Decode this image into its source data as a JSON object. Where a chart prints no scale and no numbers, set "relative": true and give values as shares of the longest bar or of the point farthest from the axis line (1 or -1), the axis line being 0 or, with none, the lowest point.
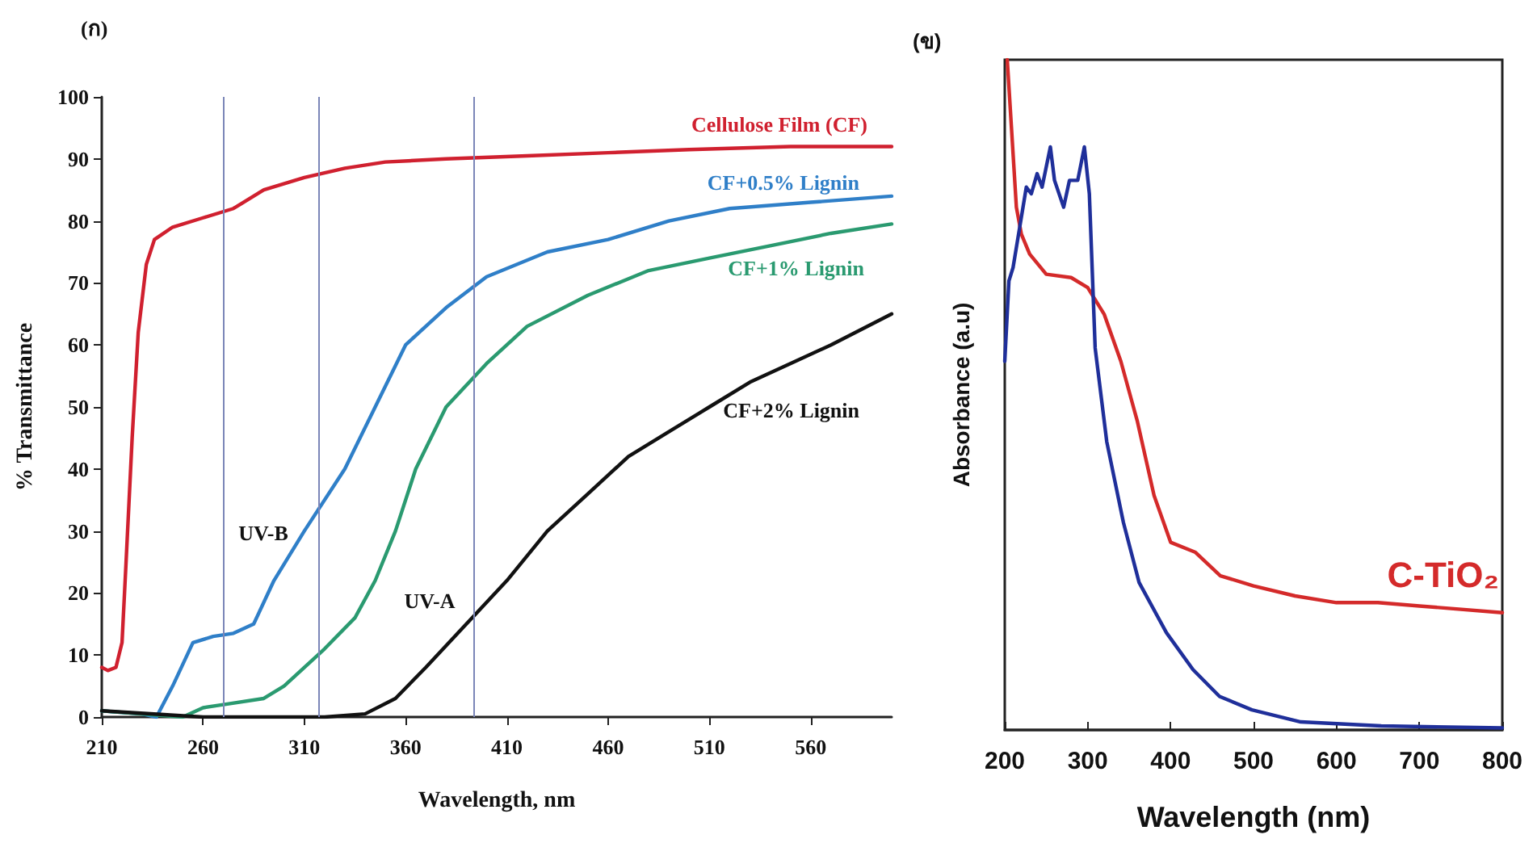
{
  "chart_data": [
    {
      "type": "line",
      "title": "(ก)",
      "xlabel": "Wavelength, nm",
      "ylabel": "% Transmittance",
      "xlim": [
        210,
        600
      ],
      "xticks": [
        210,
        260,
        310,
        360,
        410,
        460,
        510,
        560
      ],
      "ylim": [
        0,
        100
      ],
      "yticks": [
        0,
        10,
        20,
        30,
        40,
        50,
        60,
        70,
        80,
        90,
        100
      ],
      "grid": false,
      "legend": false,
      "marker": "none",
      "line_style": "solid",
      "series": [
        {
          "name": "Cellulose Film (CF)",
          "color": "#d0202f",
          "x": [
            210,
            213,
            217,
            220,
            222,
            225,
            228,
            232,
            236,
            245,
            260,
            275,
            290,
            310,
            330,
            350,
            380,
            420,
            460,
            500,
            550,
            600
          ],
          "values": [
            8,
            7.5,
            8,
            12,
            25,
            45,
            62,
            73,
            77,
            79,
            80.5,
            82,
            85,
            87,
            88.5,
            89.5,
            90,
            90.5,
            91,
            91.5,
            92,
            92
          ]
        },
        {
          "name": "CF+0.5% Lignin",
          "color": "#2f7fc8",
          "x": [
            210,
            230,
            237,
            245,
            255,
            265,
            275,
            285,
            295,
            310,
            330,
            345,
            360,
            380,
            400,
            430,
            460,
            490,
            520,
            560,
            600
          ],
          "values": [
            1,
            0.5,
            0,
            5,
            12,
            13,
            13.5,
            15,
            22,
            30,
            40,
            50,
            60,
            66,
            71,
            75,
            77,
            80,
            82,
            83,
            84
          ]
        },
        {
          "name": "CF+1% Lignin",
          "color": "#2a9a70",
          "x": [
            210,
            250,
            260,
            270,
            290,
            300,
            320,
            335,
            345,
            355,
            365,
            380,
            400,
            420,
            450,
            480,
            510,
            540,
            570,
            600
          ],
          "values": [
            1,
            0,
            1.5,
            2,
            3,
            5,
            11,
            16,
            22,
            30,
            40,
            50,
            57,
            63,
            68,
            72,
            74,
            76,
            78,
            79.5
          ]
        },
        {
          "name": "CF+2% Lignin",
          "color": "#111111",
          "x": [
            210,
            260,
            320,
            340,
            355,
            370,
            390,
            410,
            430,
            450,
            470,
            490,
            510,
            530,
            550,
            570,
            600
          ],
          "values": [
            1,
            0,
            0,
            0.5,
            3,
            8,
            15,
            22,
            30,
            36,
            42,
            46,
            50,
            54,
            57,
            60,
            65
          ]
        }
      ],
      "ref_lines": [
        {
          "axis": "x",
          "value": 270,
          "color": "#7b86b8"
        },
        {
          "axis": "x",
          "value": 317,
          "color": "#7b86b8"
        },
        {
          "axis": "x",
          "value": 394,
          "color": "#7b86b8"
        }
      ],
      "annotations": [
        "UV-B",
        "UV-A"
      ]
    },
    {
      "type": "line",
      "title": "(ข)",
      "xlabel": "Wavelength (nm)",
      "ylabel": "Absorbance (a.u)",
      "relative": true,
      "xlim": [
        200,
        800
      ],
      "xticks": [
        200,
        300,
        400,
        500,
        600,
        700,
        800
      ],
      "tick_labels": "x",
      "grid": false,
      "legend": false,
      "marker": "none",
      "line_style": "solid",
      "series": [
        {
          "name": "C-TiO₂",
          "color": "#d42a2a",
          "x": [
            203,
            208,
            214,
            220,
            230,
            250,
            280,
            300,
            320,
            340,
            360,
            380,
            400,
            430,
            460,
            500,
            550,
            600,
            650,
            700,
            800
          ],
          "values": [
            1,
            0.9,
            0.78,
            0.74,
            0.71,
            0.68,
            0.675,
            0.66,
            0.62,
            0.55,
            0.46,
            0.35,
            0.28,
            0.265,
            0.23,
            0.215,
            0.2,
            0.19,
            0.19,
            0.185,
            0.175
          ]
        },
        {
          "color": "#1f2f9a",
          "x": [
            200,
            205,
            210,
            218,
            226,
            232,
            239,
            245,
            255,
            260,
            271,
            278,
            288,
            296,
            302,
            309,
            323,
            343,
            362,
            395,
            427,
            459,
            498,
            557,
            654,
            800
          ],
          "values": [
            0.55,
            0.67,
            0.69,
            0.75,
            0.81,
            0.8,
            0.83,
            0.81,
            0.87,
            0.82,
            0.78,
            0.82,
            0.82,
            0.87,
            0.8,
            0.57,
            0.43,
            0.31,
            0.22,
            0.145,
            0.09,
            0.05,
            0.03,
            0.012,
            0.006,
            0.003
          ]
        }
      ]
    }
  ]
}
